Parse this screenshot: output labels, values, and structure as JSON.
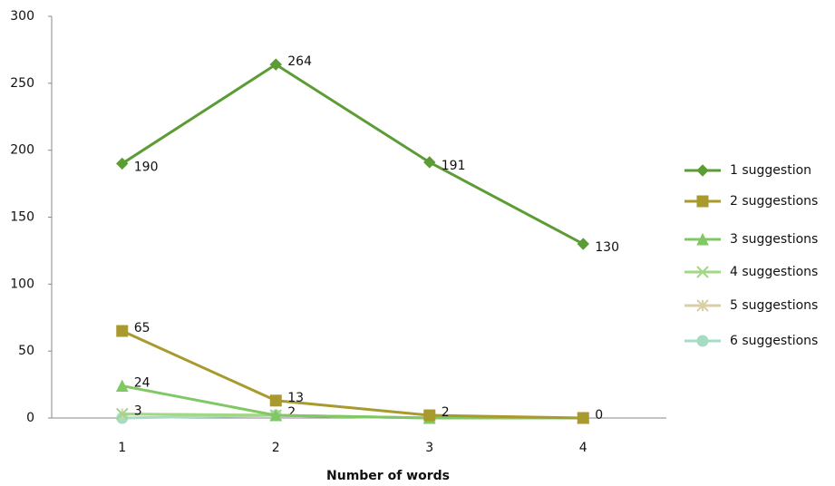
{
  "chart_data": {
    "type": "line",
    "x_label": "Number of words",
    "categories": [
      "1",
      "2",
      "3",
      "4"
    ],
    "ylim": [
      0,
      300
    ],
    "yticks": [
      0,
      50,
      100,
      150,
      200,
      250,
      300
    ],
    "legend": "right",
    "series": [
      {
        "name": "1 suggestion",
        "color": "#5c9c34",
        "marker": "diamond",
        "values": [
          190,
          264,
          191,
          130
        ],
        "value_labels": [
          "190",
          "264",
          "191",
          "130"
        ]
      },
      {
        "name": "2 suggestions",
        "color": "#a99a2e",
        "marker": "square",
        "values": [
          65,
          13,
          2,
          0
        ],
        "value_labels": [
          "65",
          "13",
          "2",
          "0"
        ]
      },
      {
        "name": "3 suggestions",
        "color": "#80c864",
        "marker": "triangle",
        "values": [
          24,
          2,
          0,
          0
        ],
        "value_labels": [
          "24",
          null,
          null,
          null
        ]
      },
      {
        "name": "4 suggestions",
        "color": "#a0d884",
        "marker": "x",
        "values": [
          3,
          2,
          0,
          0
        ],
        "value_labels": [
          "3",
          null,
          null,
          null
        ]
      },
      {
        "name": "5 suggestions",
        "color": "#d8cfa4",
        "marker": "star",
        "values": [
          3,
          2,
          0,
          0
        ]
      },
      {
        "name": "6 suggestions",
        "color": "#a6dcc4",
        "marker": "circle",
        "values": [
          0,
          2,
          0,
          0
        ],
        "value_labels": [
          null,
          "2",
          null,
          null
        ]
      }
    ]
  }
}
